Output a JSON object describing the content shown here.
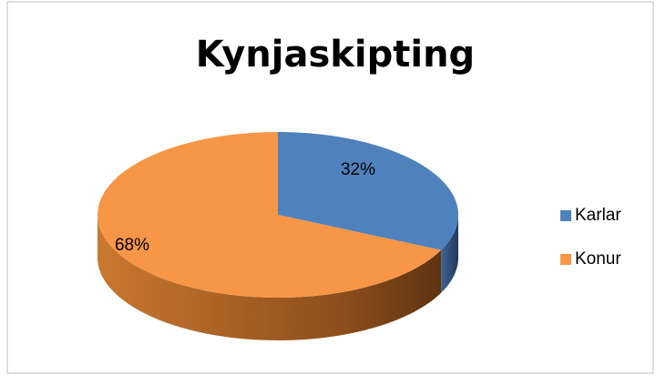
{
  "chart_data": {
    "type": "pie",
    "title": "Kynjaskipting",
    "categories": [
      "Karlar",
      "Konur"
    ],
    "values": [
      32,
      68
    ],
    "value_labels": [
      "32%",
      "68%"
    ],
    "colors": [
      "#4f81bd",
      "#f79646"
    ],
    "legend": "right"
  }
}
